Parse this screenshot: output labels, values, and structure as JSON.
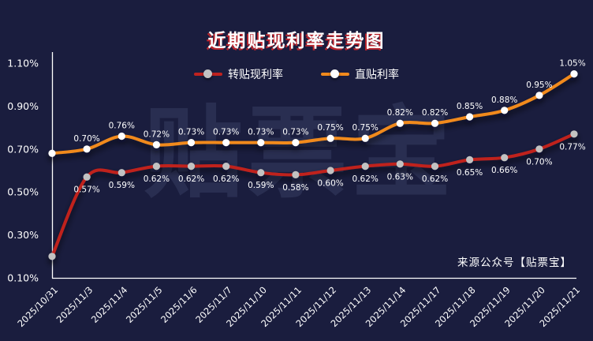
{
  "title": "近期贴现利率走势图",
  "watermark": "贴票宝",
  "source_note": "来源公众号【贴票宝】",
  "colors": {
    "background": "#1a1d3e",
    "axis": "#ffffff",
    "text": "#ffffff",
    "title_shadow": "#b8252e",
    "rediscount_line": "#c0221f",
    "rediscount_marker": "#c2c2c2",
    "direct_line": "#f18a1d",
    "direct_marker": "#ffffff",
    "watermark": "rgba(150,162,205,0.13)"
  },
  "legend": [
    {
      "key": "rediscount",
      "label": "转贴现利率",
      "line_color": "#c0221f",
      "dot_color": "#c2c2c2"
    },
    {
      "key": "direct",
      "label": "直贴利率",
      "line_color": "#f18a1d",
      "dot_color": "#ffffff"
    }
  ],
  "chart_data": {
    "type": "line",
    "title": "近期贴现利率走势图",
    "xlabel": "",
    "ylabel": "",
    "ylim": [
      0.1,
      1.1
    ],
    "y_ticks": [
      "1.10%",
      "0.90%",
      "0.70%",
      "0.50%",
      "0.30%",
      "0.10%"
    ],
    "grid": false,
    "legend_position": "top",
    "smooth": true,
    "categories": [
      "2025/10/31",
      "2025/11/3",
      "2025/11/4",
      "2025/11/5",
      "2025/11/6",
      "2025/11/7",
      "2025/11/10",
      "2025/11/11",
      "2025/11/12",
      "2025/11/13",
      "2025/11/14",
      "2025/11/17",
      "2025/11/18",
      "2025/11/19",
      "2025/11/20",
      "2025/11/21"
    ],
    "series": [
      {
        "key": "rediscount",
        "name": "转贴现利率",
        "color": "#c0221f",
        "marker_color": "#c2c2c2",
        "label_position": "below",
        "values": [
          0.2,
          0.57,
          0.59,
          0.62,
          0.62,
          0.62,
          0.59,
          0.58,
          0.6,
          0.62,
          0.63,
          0.62,
          0.65,
          0.66,
          0.7,
          0.77
        ],
        "labels": [
          "",
          "0.57%",
          "0.59%",
          "0.62%",
          "0.62%",
          "0.62%",
          "0.59%",
          "0.58%",
          "0.60%",
          "0.62%",
          "0.63%",
          "0.62%",
          "0.65%",
          "0.66%",
          "0.70%",
          "0.77%"
        ]
      },
      {
        "key": "direct",
        "name": "直贴利率",
        "color": "#f18a1d",
        "marker_color": "#ffffff",
        "label_position": "above",
        "values": [
          0.68,
          0.7,
          0.76,
          0.72,
          0.73,
          0.73,
          0.73,
          0.73,
          0.75,
          0.75,
          0.82,
          0.82,
          0.85,
          0.88,
          0.95,
          1.05
        ],
        "labels": [
          "",
          "0.70%",
          "0.76%",
          "0.72%",
          "0.73%",
          "0.73%",
          "0.73%",
          "0.73%",
          "0.75%",
          "0.75%",
          "0.82%",
          "0.82%",
          "0.85%",
          "0.88%",
          "0.95%",
          "1.05%"
        ]
      }
    ]
  }
}
